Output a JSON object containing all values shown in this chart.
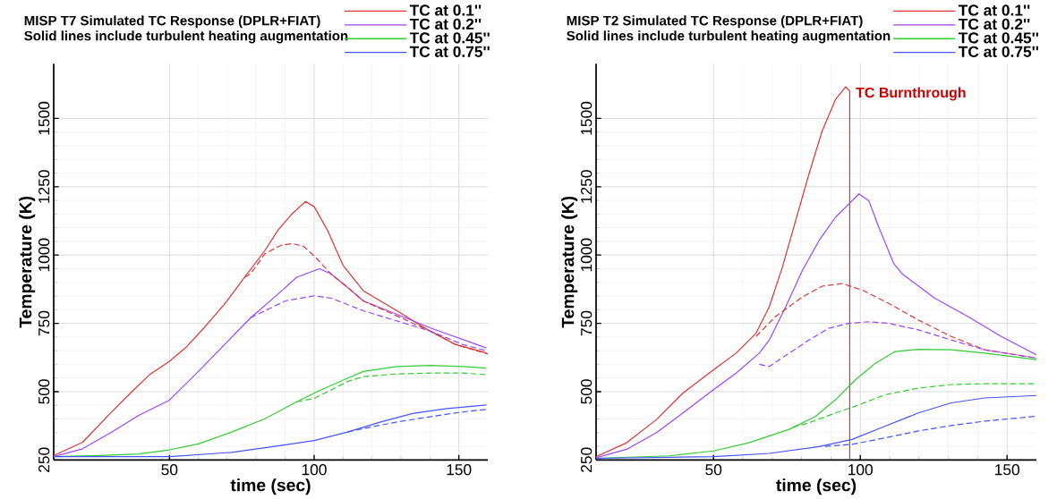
{
  "chart_data": [
    {
      "type": "line",
      "title": "MISP T7 Simulated TC Response (DPLR+FIAT)",
      "subtitle": "Solid lines include turbulent heating augmentation",
      "xlabel": "time (sec)",
      "ylabel": "Temperature (K)",
      "xlim": [
        10,
        160
      ],
      "ylim": [
        250,
        1700
      ],
      "xticks": [
        50,
        100,
        150
      ],
      "yticks": [
        250,
        500,
        750,
        1000,
        1250,
        1500
      ],
      "grid": true,
      "legend": "top right",
      "marker": "none",
      "series": [
        {
          "name": "TC at 0.1''",
          "color": "#e03434",
          "line_style": "solid",
          "x": [
            10,
            20,
            30,
            37,
            43,
            50,
            55.5,
            62,
            69,
            76,
            83,
            87.5,
            92,
            97,
            100,
            104.6,
            110,
            117,
            128.6,
            140,
            149,
            159.5
          ],
          "values": [
            266,
            315,
            426,
            500,
            561,
            611,
            660,
            734,
            820,
            919,
            1017,
            1091,
            1147,
            1196,
            1177,
            1091,
            962,
            869,
            796,
            722,
            672,
            642
          ]
        },
        {
          "name": "TC at 0.2''",
          "color": "#9b45ff",
          "line_style": "solid",
          "x": [
            10,
            20,
            30,
            39.5,
            50,
            60,
            69,
            78,
            87.5,
            94,
            101.8,
            105.8,
            111.5,
            117,
            128.6,
            140,
            159.5
          ],
          "values": [
            262,
            291,
            352,
            414,
            469,
            574,
            672,
            770,
            857,
            919,
            950,
            931,
            882,
            832,
            783,
            734,
            660
          ]
        },
        {
          "name": "TC at 0.45''",
          "color": "#33cc33",
          "line_style": "solid",
          "x": [
            10,
            25.8,
            39.5,
            50,
            60,
            71.5,
            83,
            94,
            101,
            111.5,
            117,
            128.6,
            140,
            151.5,
            159.5
          ],
          "values": [
            262,
            266,
            272,
            287,
            309,
            352,
            401,
            463,
            500,
            549,
            574,
            592,
            596,
            592,
            586
          ]
        },
        {
          "name": "TC at 0.75''",
          "color": "#4455ff",
          "line_style": "solid",
          "x": [
            10,
            50,
            71.5,
            88.6,
            100,
            111.5,
            123,
            134,
            145.8,
            159.5
          ],
          "values": [
            262,
            262,
            278,
            303,
            321,
            352,
            389,
            420,
            438,
            451
          ]
        },
        {
          "color": "#e03434",
          "line_style": "dashed",
          "x": [
            76,
            78,
            83,
            88.6,
            92.6,
            96.6,
            101,
            105.8,
            111.5,
            117,
            128.6,
            140,
            149,
            160
          ],
          "values": [
            919,
            931,
            1005,
            1036,
            1042,
            1030,
            986,
            931,
            882,
            832,
            777,
            722,
            672,
            638
          ]
        },
        {
          "color": "#9b45ff",
          "line_style": "dashed",
          "x": [
            78,
            83,
            90,
            100,
            106,
            117,
            128.6,
            140,
            151.5,
            159.5
          ],
          "values": [
            770,
            796,
            832,
            851,
            842,
            796,
            759,
            722,
            672,
            650
          ]
        },
        {
          "color": "#33cc33",
          "line_style": "dashed",
          "x": [
            94,
            100,
            105.8,
            111.5,
            117,
            128.6,
            140,
            151.5,
            159.5
          ],
          "values": [
            463,
            475,
            506,
            537,
            555,
            565,
            568,
            568,
            562
          ]
        },
        {
          "color": "#4455ff",
          "line_style": "dashed",
          "x": [
            111.5,
            117,
            128.6,
            140,
            151.5,
            159.5
          ],
          "values": [
            352,
            365,
            389,
            408,
            426,
            435
          ]
        }
      ]
    },
    {
      "type": "line",
      "title": "MISP T2 Simulated TC Response (DPLR+FIAT)",
      "subtitle": "Solid lines include turbulent heating augmentation",
      "xlabel": "time (sec)",
      "ylabel": "Temperature (K)",
      "xlim": [
        10,
        160
      ],
      "ylim": [
        250,
        1700
      ],
      "xticks": [
        50,
        100,
        150
      ],
      "yticks": [
        250,
        500,
        750,
        1000,
        1250,
        1500
      ],
      "grid": true,
      "legend": "top right",
      "marker": "none",
      "annotations": [
        {
          "text": "TC Burnthrough",
          "x": 97,
          "y": 1590
        }
      ],
      "series": [
        {
          "name": "TC at 0.1''",
          "color": "#e03434",
          "line_style": "solid",
          "x": [
            10,
            20.4,
            30.6,
            39.6,
            50,
            57.7,
            64.5,
            69,
            73.5,
            78,
            82.5,
            87,
            91.6,
            95,
            96.4,
            96.4
          ],
          "values": [
            262,
            313,
            398,
            495,
            580,
            641,
            714,
            811,
            957,
            1127,
            1296,
            1454,
            1570,
            1616,
            1600,
            250
          ]
        },
        {
          "name": "TC at 0.2''",
          "color": "#9b45ff",
          "line_style": "solid",
          "x": [
            10,
            20.4,
            30.6,
            39.6,
            50,
            57.7,
            65.6,
            69,
            74.6,
            80.3,
            86,
            91.6,
            96.1,
            99.5,
            102.9,
            106.3,
            111.4,
            114.2,
            125.5,
            136.8,
            148,
            160
          ],
          "values": [
            258,
            289,
            350,
            422,
            507,
            568,
            641,
            689,
            811,
            944,
            1054,
            1139,
            1187,
            1224,
            1199,
            1102,
            969,
            932,
            841,
            774,
            702,
            635
          ]
        },
        {
          "name": "TC at 0.45''",
          "color": "#33cc33",
          "line_style": "solid",
          "x": [
            10,
            35,
            50,
            62,
            75.8,
            84.8,
            91.6,
            98.4,
            105.1,
            111.9,
            119.8,
            131,
            142.4,
            160
          ],
          "values": [
            256,
            265,
            283,
            313,
            362,
            410,
            471,
            544,
            604,
            647,
            655,
            653,
            641,
            617
          ]
        },
        {
          "name": "TC at 0.75''",
          "color": "#4455ff",
          "line_style": "solid",
          "x": [
            10,
            50,
            69,
            86,
            97.2,
            108.5,
            119.8,
            131,
            142.4,
            160
          ],
          "values": [
            256,
            262,
            274,
            299,
            325,
            374,
            422,
            459,
            477,
            486
          ]
        },
        {
          "color": "#e03434",
          "line_style": "dashed",
          "x": [
            64.5,
            71,
            80.3,
            87,
            93.8,
            100.6,
            109.7,
            119.8,
            131,
            142.4,
            160
          ],
          "values": [
            702,
            774,
            847,
            886,
            896,
            872,
            823,
            762,
            702,
            653,
            623
          ]
        },
        {
          "color": "#9b45ff",
          "line_style": "dashed",
          "x": [
            65.6,
            69,
            75.8,
            82.5,
            89.3,
            96,
            102.9,
            109.7,
            119.8,
            131,
            142.4,
            160
          ],
          "values": [
            600,
            592,
            641,
            689,
            732,
            750,
            756,
            750,
            726,
            689,
            653,
            623
          ]
        },
        {
          "color": "#33cc33",
          "line_style": "dashed",
          "x": [
            77,
            82.5,
            91.6,
            98.4,
            108.5,
            119.8,
            131,
            142.4,
            160
          ],
          "values": [
            370,
            386,
            422,
            447,
            489,
            513,
            526,
            529,
            529
          ]
        },
        {
          "color": "#4455ff",
          "line_style": "dashed",
          "x": [
            88,
            97.2,
            108.5,
            119.8,
            131,
            142.4,
            160
          ],
          "values": [
            300,
            307,
            331,
            356,
            376,
            392,
            410
          ]
        }
      ]
    }
  ]
}
